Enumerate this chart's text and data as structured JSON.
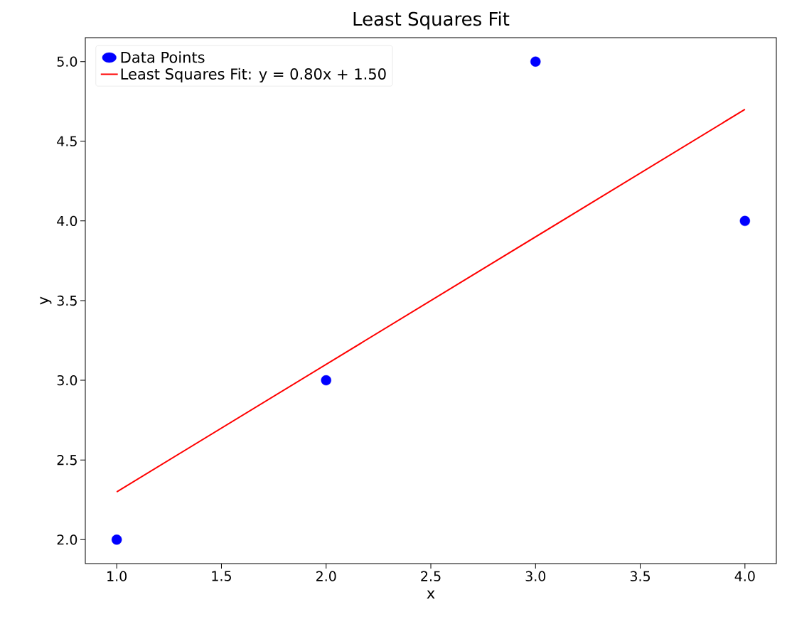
{
  "chart_data": {
    "type": "scatter",
    "title": "Least Squares Fit",
    "xlabel": "x",
    "ylabel": "y",
    "xlim": [
      0.85,
      4.15
    ],
    "ylim": [
      1.85,
      5.15
    ],
    "xticks": [
      {
        "value": 1,
        "label": "1.0"
      },
      {
        "value": 1.5,
        "label": "1.5"
      },
      {
        "value": 2,
        "label": "2.0"
      },
      {
        "value": 2.5,
        "label": "2.5"
      },
      {
        "value": 3,
        "label": "3.0"
      },
      {
        "value": 3.5,
        "label": "3.5"
      },
      {
        "value": 4,
        "label": "4.0"
      }
    ],
    "yticks": [
      {
        "value": 2,
        "label": "2.0"
      },
      {
        "value": 2.5,
        "label": "2.5"
      },
      {
        "value": 3,
        "label": "3.0"
      },
      {
        "value": 3.5,
        "label": "3.5"
      },
      {
        "value": 4,
        "label": "4.0"
      },
      {
        "value": 4.5,
        "label": "4.5"
      },
      {
        "value": 5,
        "label": "5.0"
      }
    ],
    "legend": "top left",
    "grid": false,
    "series": [
      {
        "name": "Data Points",
        "color": "#0000ff",
        "marker": "circle",
        "x": [
          1,
          2,
          3,
          4
        ],
        "values": [
          2,
          3,
          5,
          4
        ]
      },
      {
        "name": "Least Squares Fit: y = 0.80x + 1.50",
        "type": "line",
        "color": "#ff0000",
        "marker": "none",
        "line_style": "solid",
        "x": [
          1,
          4
        ],
        "values": [
          2.3,
          4.7
        ]
      }
    ]
  }
}
